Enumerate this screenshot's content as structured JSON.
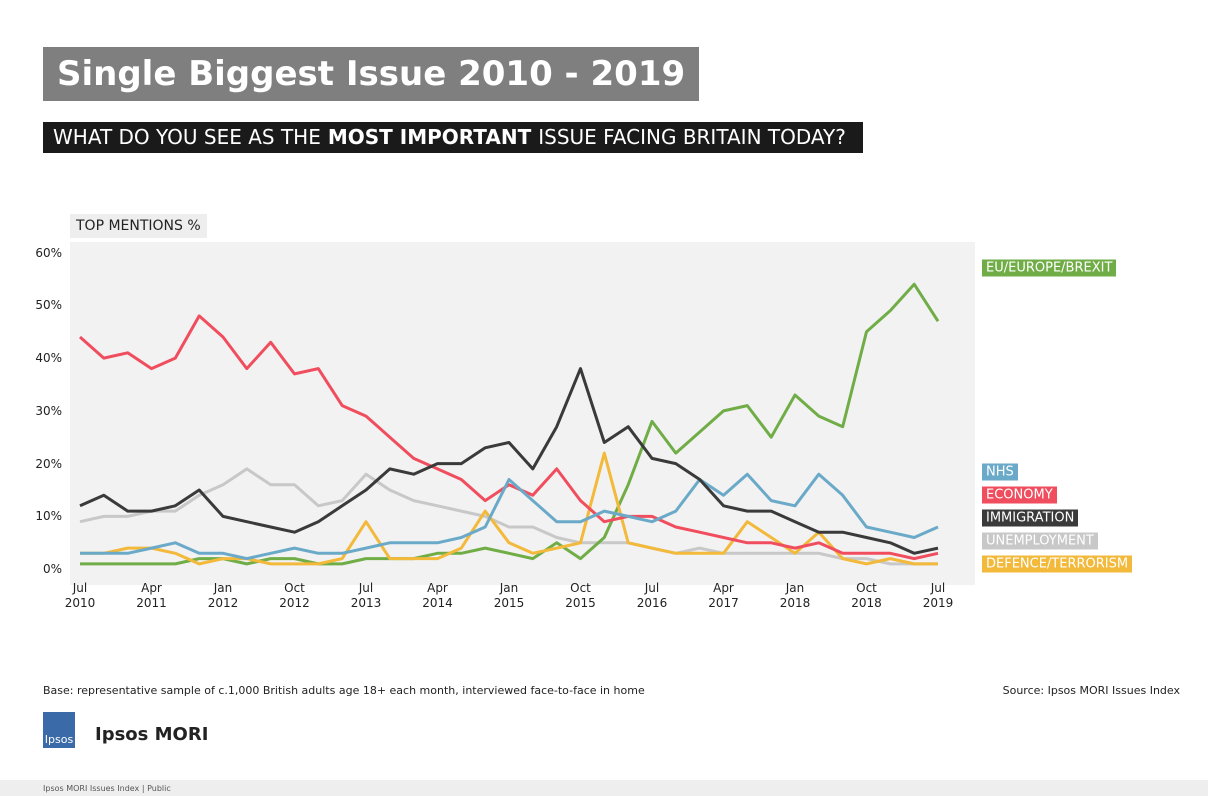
{
  "chart_data": {
    "type": "line",
    "title": "Single Biggest Issue 2010 - 2019",
    "subtitle": [
      "WHAT DO YOU SEE AS THE",
      "MOST IMPORTANT",
      "ISSUE FACING BRITAIN TODAY?"
    ],
    "ylabel": "TOP MENTIONS %",
    "categories": [
      "Jul\n2010",
      null,
      null,
      "Apr\n2011",
      null,
      null,
      "Jan\n2012",
      null,
      null,
      "Oct\n2012",
      null,
      null,
      "Jul\n2013",
      null,
      null,
      "Apr\n2014",
      null,
      null,
      "Jan\n2015",
      null,
      null,
      "Oct\n2015",
      null,
      null,
      "Jul\n2016",
      null,
      null,
      "Apr\n2017",
      null,
      null,
      "Jan\n2018",
      null,
      null,
      "Oct\n2018",
      null,
      null,
      "Jul\n2019"
    ],
    "ylim": [
      -3,
      62
    ],
    "yticks": [
      {
        "value": 0,
        "label": "0%"
      },
      {
        "value": 10,
        "label": "10%"
      },
      {
        "value": 20,
        "label": "20%"
      },
      {
        "value": 30,
        "label": "30%"
      },
      {
        "value": 40,
        "label": "40%"
      },
      {
        "value": 50,
        "label": "50%"
      },
      {
        "value": 60,
        "label": "60%"
      }
    ],
    "series": [
      {
        "name": "EU/EUROPE/BREXIT",
        "color": "#70ad47",
        "values": [
          1,
          1,
          1,
          1,
          1,
          2,
          2,
          1,
          2,
          2,
          1,
          1,
          2,
          2,
          2,
          3,
          3,
          4,
          3,
          2,
          5,
          2,
          6,
          16,
          28,
          22,
          26,
          30,
          31,
          25,
          33,
          29,
          27,
          45,
          49,
          54,
          47
        ]
      },
      {
        "name": "NHS",
        "color": "#6aaac8",
        "values": [
          3,
          3,
          3,
          4,
          5,
          3,
          3,
          2,
          3,
          4,
          3,
          3,
          4,
          5,
          5,
          5,
          6,
          8,
          17,
          13,
          9,
          9,
          11,
          10,
          9,
          11,
          17,
          14,
          18,
          13,
          12,
          18,
          14,
          8,
          7,
          6,
          8
        ]
      },
      {
        "name": "ECONOMY",
        "color": "#f04e5e",
        "values": [
          44,
          40,
          41,
          38,
          40,
          48,
          44,
          38,
          43,
          37,
          38,
          31,
          29,
          25,
          21,
          19,
          17,
          13,
          16,
          14,
          19,
          13,
          9,
          10,
          10,
          8,
          7,
          6,
          5,
          5,
          4,
          5,
          3,
          3,
          3,
          2,
          3
        ]
      },
      {
        "name": "IMMIGRATION",
        "color": "#3a3a3a",
        "values": [
          12,
          14,
          11,
          11,
          12,
          15,
          10,
          9,
          8,
          7,
          9,
          12,
          15,
          19,
          18,
          20,
          20,
          23,
          24,
          19,
          27,
          38,
          24,
          27,
          21,
          20,
          17,
          12,
          11,
          11,
          9,
          7,
          7,
          6,
          5,
          3,
          4
        ]
      },
      {
        "name": "UNEMPLOYMENT",
        "color": "#c8c8c8",
        "values": [
          9,
          10,
          10,
          11,
          11,
          14,
          16,
          19,
          16,
          16,
          12,
          13,
          18,
          15,
          13,
          12,
          11,
          10,
          8,
          8,
          6,
          5,
          5,
          5,
          4,
          3,
          4,
          3,
          3,
          3,
          3,
          3,
          2,
          2,
          1,
          1,
          1
        ]
      },
      {
        "name": "DEFENCE/TERRORISM",
        "color": "#f2b93b",
        "values": [
          3,
          3,
          4,
          4,
          3,
          1,
          2,
          2,
          1,
          1,
          1,
          2,
          9,
          2,
          2,
          2,
          4,
          11,
          5,
          3,
          4,
          5,
          22,
          5,
          4,
          3,
          3,
          3,
          9,
          6,
          3,
          7,
          2,
          1,
          2,
          1,
          1
        ]
      }
    ]
  },
  "base_note": "Base: representative sample of c.1,000 British adults age 18+ each month, interviewed face-to-face in home",
  "source": "Source: Ipsos MORI Issues Index",
  "logo": "Ipsos",
  "brand": "Ipsos MORI",
  "footer": "Ipsos MORI Issues Index | Public"
}
